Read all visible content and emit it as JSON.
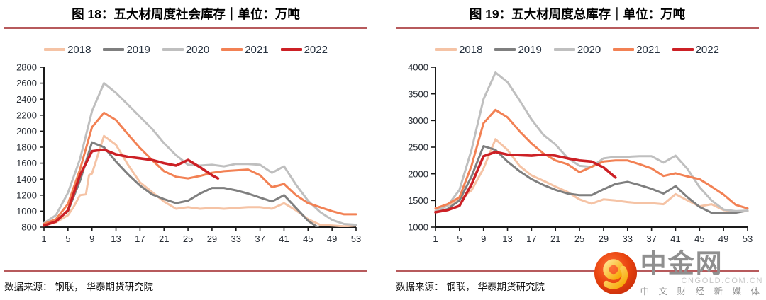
{
  "page": {
    "background": "#FFFFFF",
    "accent_rule_color": "#B75A5C"
  },
  "source_note": "数据来源： 钢联， 华泰期货研究院",
  "chart_data": [
    {
      "type": "line",
      "title": "图 18：五大材周度社会库存｜单位：万吨",
      "unit": "万吨",
      "xlabel": "",
      "ylabel": "",
      "ylim": [
        800,
        2800
      ],
      "ystep": 200,
      "xlim": [
        1,
        53
      ],
      "xticks": [
        1,
        5,
        9,
        13,
        17,
        21,
        25,
        29,
        33,
        37,
        41,
        45,
        49,
        53
      ],
      "grid": false,
      "legend_position": "top",
      "axis_color": "#1A1A1A",
      "tick_label_color": "#262B33",
      "series": [
        {
          "name": "2018",
          "color": "#F5C3A5",
          "width": 3,
          "x": [
            1,
            3,
            5,
            6,
            7,
            8,
            8.5,
            9,
            11,
            13,
            15,
            17,
            19,
            21,
            23,
            25,
            27,
            29,
            31,
            33,
            35,
            37,
            39,
            41,
            43,
            45,
            47,
            49,
            51,
            53
          ],
          "values": [
            820,
            860,
            950,
            1060,
            1200,
            1210,
            1450,
            1470,
            1940,
            1830,
            1580,
            1360,
            1240,
            1120,
            1030,
            1050,
            1030,
            1040,
            1030,
            1040,
            1050,
            1050,
            1030,
            1100,
            1010,
            900,
            830,
            820,
            810,
            820
          ]
        },
        {
          "name": "2019",
          "color": "#7F7F7F",
          "width": 3,
          "x": [
            1,
            3,
            5,
            7,
            9,
            11,
            13,
            15,
            17,
            19,
            21,
            23,
            25,
            27,
            29,
            31,
            33,
            35,
            37,
            39,
            41,
            43,
            45,
            47,
            49,
            51,
            53
          ],
          "values": [
            830,
            880,
            1000,
            1380,
            1860,
            1800,
            1620,
            1460,
            1320,
            1210,
            1150,
            1100,
            1130,
            1220,
            1290,
            1290,
            1260,
            1220,
            1170,
            1120,
            1200,
            1040,
            880,
            780,
            755,
            745,
            760
          ]
        },
        {
          "name": "2020",
          "color": "#BFBFBF",
          "width": 3,
          "x": [
            1,
            3,
            5,
            7,
            9,
            11,
            13,
            15,
            17,
            19,
            21,
            23,
            25,
            27,
            29,
            31,
            33,
            35,
            37,
            39,
            41,
            43,
            45,
            47,
            49,
            51,
            53
          ],
          "values": [
            850,
            950,
            1230,
            1650,
            2250,
            2600,
            2480,
            2330,
            2180,
            2030,
            1850,
            1700,
            1580,
            1570,
            1580,
            1560,
            1590,
            1590,
            1580,
            1480,
            1560,
            1330,
            1130,
            990,
            890,
            840,
            830
          ]
        },
        {
          "name": "2021",
          "color": "#F28154",
          "width": 3,
          "x": [
            1,
            3,
            5,
            7,
            9,
            11,
            13,
            15,
            17,
            19,
            21,
            23,
            25,
            27,
            29,
            31,
            33,
            35,
            37,
            39,
            41,
            43,
            45,
            47,
            49,
            51,
            53
          ],
          "values": [
            840,
            900,
            1090,
            1520,
            2050,
            2230,
            2140,
            1960,
            1790,
            1640,
            1500,
            1430,
            1410,
            1440,
            1480,
            1500,
            1510,
            1520,
            1450,
            1300,
            1340,
            1200,
            1100,
            1050,
            1000,
            960,
            960
          ]
        },
        {
          "name": "2022",
          "color": "#CC2025",
          "width": 3.6,
          "x": [
            1,
            3,
            5,
            7,
            9,
            11,
            13,
            15,
            17,
            19,
            21,
            23,
            25,
            27,
            29,
            30
          ],
          "values": [
            820,
            870,
            1010,
            1450,
            1750,
            1770,
            1710,
            1680,
            1660,
            1640,
            1600,
            1570,
            1640,
            1550,
            1450,
            1410
          ]
        }
      ]
    },
    {
      "type": "line",
      "title": "图 19：五大材周度总库存｜单位：万吨",
      "unit": "万吨",
      "xlabel": "",
      "ylabel": "",
      "ylim": [
        1000,
        4000
      ],
      "ystep": 500,
      "xlim": [
        1,
        53
      ],
      "xticks": [
        1,
        5,
        9,
        13,
        17,
        21,
        25,
        29,
        33,
        37,
        41,
        45,
        49,
        53
      ],
      "grid": false,
      "legend_position": "top",
      "axis_color": "#1A1A1A",
      "tick_label_color": "#262B33",
      "series": [
        {
          "name": "2018",
          "color": "#F5C3A5",
          "width": 3,
          "x": [
            1,
            3,
            5,
            7,
            9,
            11,
            13,
            15,
            17,
            19,
            21,
            23,
            25,
            27,
            29,
            31,
            33,
            35,
            37,
            39,
            41,
            43,
            45,
            47,
            49,
            51,
            53
          ],
          "values": [
            1310,
            1400,
            1520,
            1690,
            2100,
            2650,
            2450,
            2150,
            1970,
            1870,
            1760,
            1660,
            1520,
            1440,
            1520,
            1500,
            1470,
            1450,
            1450,
            1430,
            1620,
            1500,
            1390,
            1430,
            1320,
            1290,
            1300
          ]
        },
        {
          "name": "2019",
          "color": "#7F7F7F",
          "width": 3,
          "x": [
            1,
            3,
            5,
            7,
            9,
            11,
            13,
            15,
            17,
            19,
            21,
            23,
            25,
            27,
            29,
            31,
            33,
            35,
            37,
            39,
            41,
            43,
            45,
            47,
            49,
            51,
            53
          ],
          "values": [
            1280,
            1340,
            1500,
            1950,
            2520,
            2450,
            2230,
            2050,
            1900,
            1790,
            1700,
            1630,
            1600,
            1600,
            1710,
            1810,
            1850,
            1790,
            1720,
            1630,
            1770,
            1560,
            1380,
            1270,
            1260,
            1270,
            1310
          ]
        },
        {
          "name": "2020",
          "color": "#BFBFBF",
          "width": 3,
          "x": [
            1,
            3,
            5,
            7,
            9,
            11,
            13,
            15,
            17,
            19,
            21,
            23,
            25,
            27,
            29,
            31,
            33,
            35,
            37,
            39,
            41,
            43,
            45,
            47,
            49,
            51,
            53
          ],
          "values": [
            1300,
            1400,
            1700,
            2450,
            3400,
            3900,
            3720,
            3380,
            3020,
            2730,
            2550,
            2300,
            2150,
            2130,
            2290,
            2320,
            2320,
            2330,
            2330,
            2210,
            2340,
            2090,
            1750,
            1500,
            1330,
            1300,
            1310
          ]
        },
        {
          "name": "2021",
          "color": "#F28154",
          "width": 3,
          "x": [
            1,
            3,
            5,
            7,
            9,
            11,
            13,
            15,
            17,
            19,
            21,
            23,
            25,
            27,
            29,
            31,
            33,
            35,
            37,
            39,
            41,
            43,
            45,
            47,
            49,
            51,
            53
          ],
          "values": [
            1350,
            1430,
            1560,
            2150,
            2950,
            3200,
            3060,
            2800,
            2570,
            2380,
            2250,
            2180,
            2030,
            2130,
            2230,
            2250,
            2250,
            2180,
            2100,
            1960,
            2010,
            1950,
            1900,
            1760,
            1610,
            1420,
            1350
          ]
        },
        {
          "name": "2022",
          "color": "#CC2025",
          "width": 3.6,
          "x": [
            1,
            3,
            5,
            7,
            9,
            11,
            13,
            15,
            17,
            19,
            21,
            23,
            25,
            27,
            29,
            31
          ],
          "values": [
            1280,
            1320,
            1400,
            1800,
            2330,
            2410,
            2360,
            2350,
            2340,
            2360,
            2340,
            2290,
            2250,
            2230,
            2120,
            1930
          ]
        }
      ]
    }
  ],
  "logo": {
    "name": "中金网",
    "domain": "CNGOLD.COM.CN",
    "tagline": "中 文 财 经 新 媒 体",
    "circle_color": "#E23B12",
    "swirl_color": "#FFC53D",
    "name_color": "#8F8F8F"
  }
}
